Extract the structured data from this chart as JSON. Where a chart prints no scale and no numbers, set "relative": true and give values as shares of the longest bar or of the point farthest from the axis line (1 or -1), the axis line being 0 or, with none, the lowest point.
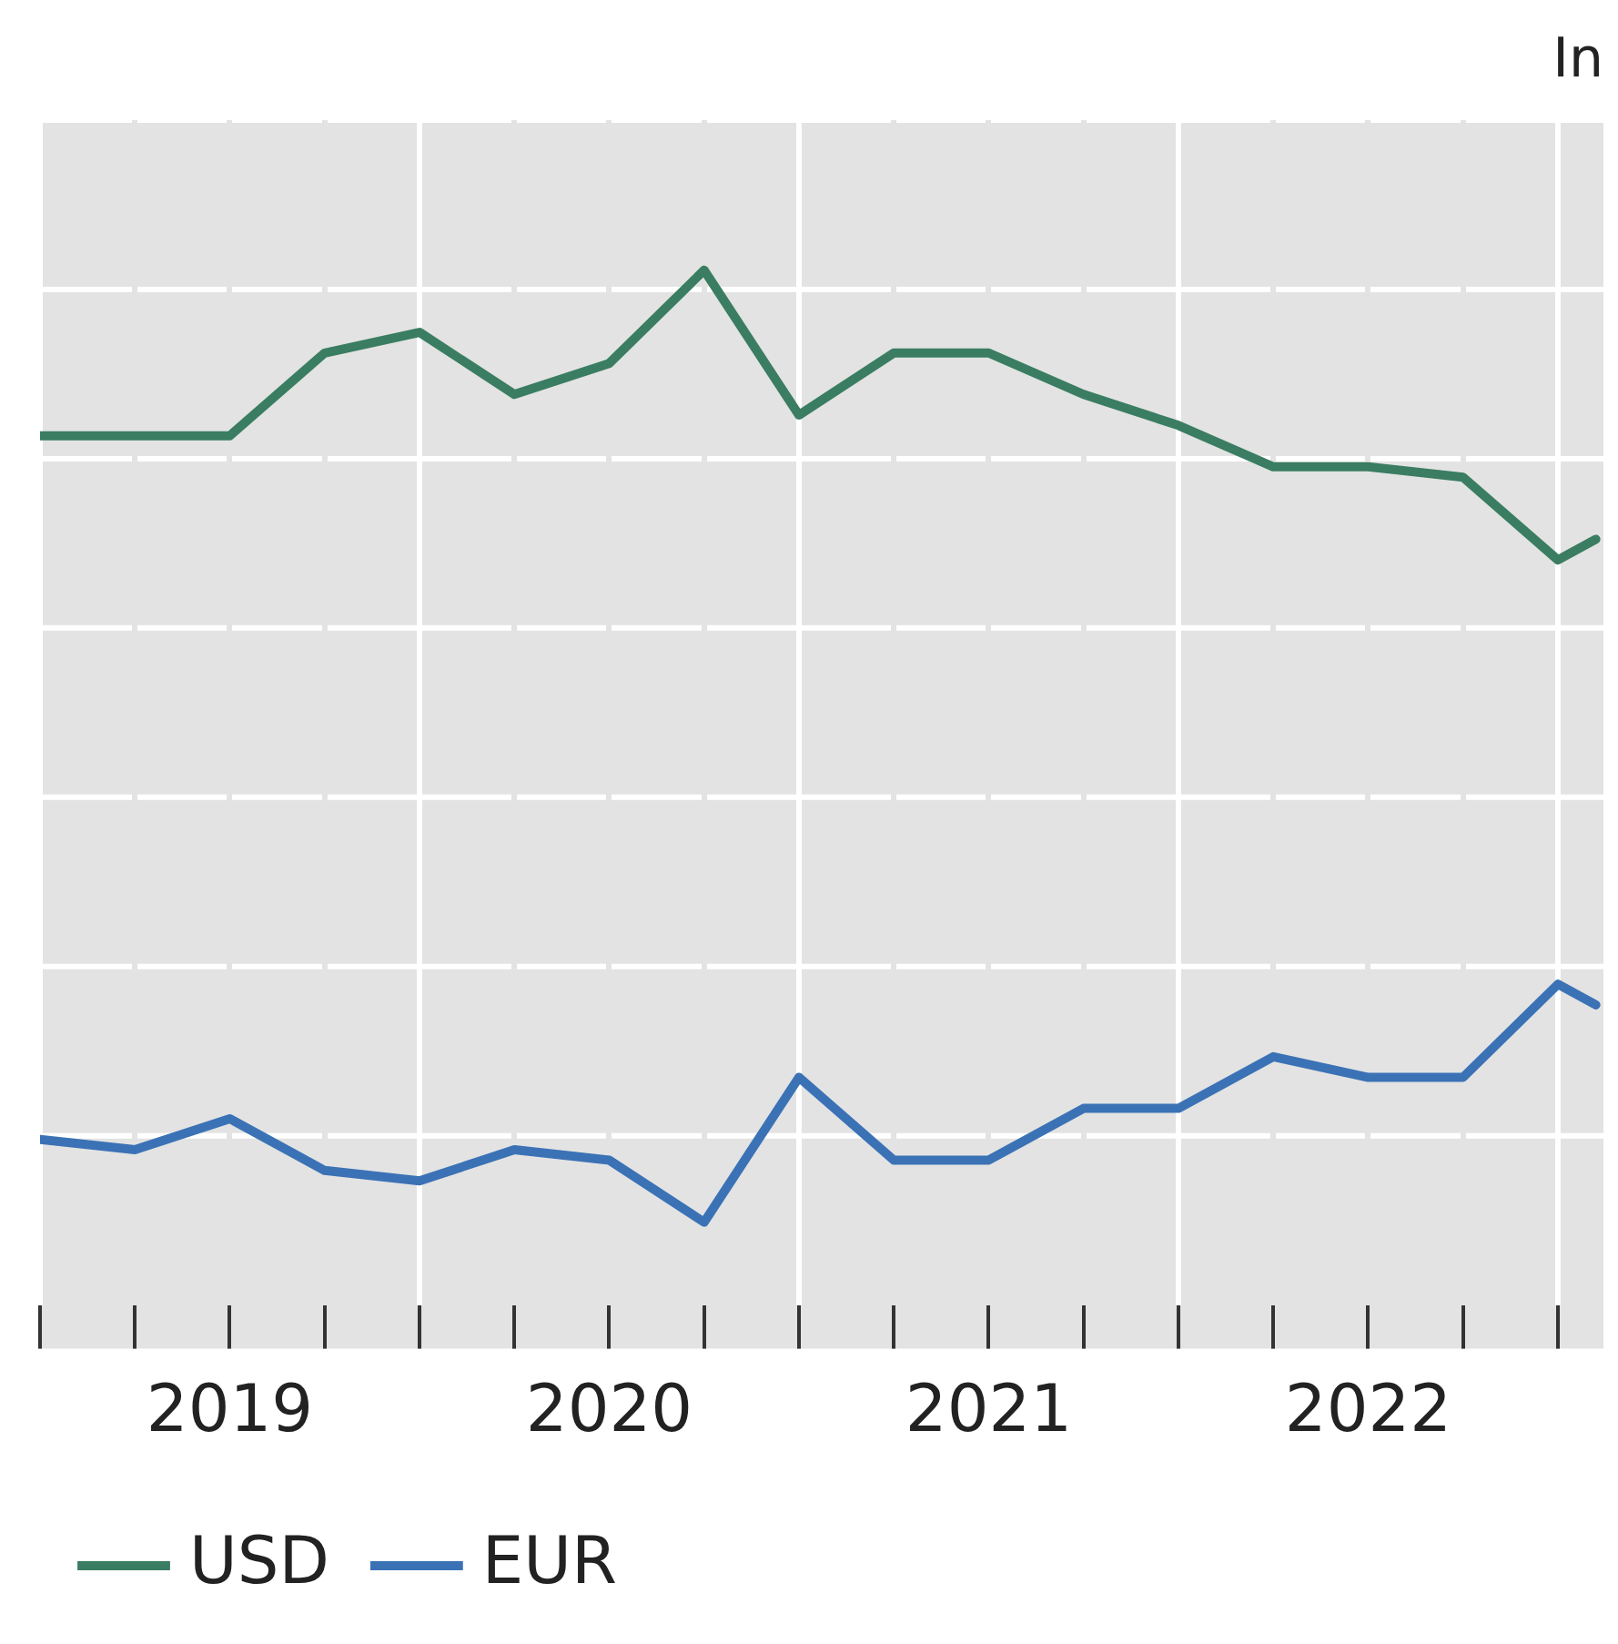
{
  "chart_data": {
    "type": "line",
    "title": "In",
    "relative": true,
    "x": [
      2019,
      2019.25,
      2019.5,
      2019.75,
      2020,
      2020.25,
      2020.5,
      2020.75,
      2021,
      2021.25,
      2021.5,
      2021.75,
      2022,
      2022.25,
      2022.5,
      2022.75,
      2023,
      2023.1
    ],
    "xlim": [
      2019,
      2023.12
    ],
    "xticks": [
      {
        "value": 2019,
        "label": null
      },
      {
        "value": 2019.25,
        "label": null
      },
      {
        "value": 2019.5,
        "label": "2019"
      },
      {
        "value": 2019.75,
        "label": null
      },
      {
        "value": 2020,
        "label": null
      },
      {
        "value": 2020.25,
        "label": null
      },
      {
        "value": 2020.5,
        "label": "2020"
      },
      {
        "value": 2020.75,
        "label": null
      },
      {
        "value": 2021,
        "label": null
      },
      {
        "value": 2021.25,
        "label": null
      },
      {
        "value": 2021.5,
        "label": "2021"
      },
      {
        "value": 2021.75,
        "label": null
      },
      {
        "value": 2022,
        "label": null
      },
      {
        "value": 2022.25,
        "label": null
      },
      {
        "value": 2022.5,
        "label": "2022"
      },
      {
        "value": 2022.75,
        "label": null
      },
      {
        "value": 2023,
        "label": null
      }
    ],
    "series": [
      {
        "name": "USD",
        "color": "#3a7d62",
        "values": [
          0.84,
          0.84,
          0.84,
          0.92,
          0.94,
          0.88,
          0.91,
          1,
          0.86,
          0.92,
          0.92,
          0.88,
          0.85,
          0.81,
          0.81,
          0.8,
          0.72,
          0.74
        ]
      },
      {
        "name": "EUR",
        "color": "#3b72b5",
        "values": [
          0.16,
          0.15,
          0.18,
          0.13,
          0.12,
          0.15,
          0.14,
          0.08,
          0.22,
          0.14,
          0.14,
          0.19,
          0.19,
          0.24,
          0.22,
          0.22,
          0.31,
          0.29
        ]
      }
    ],
    "grid": true,
    "legend": "bottom left",
    "marker": "none",
    "line_style": "solid"
  }
}
